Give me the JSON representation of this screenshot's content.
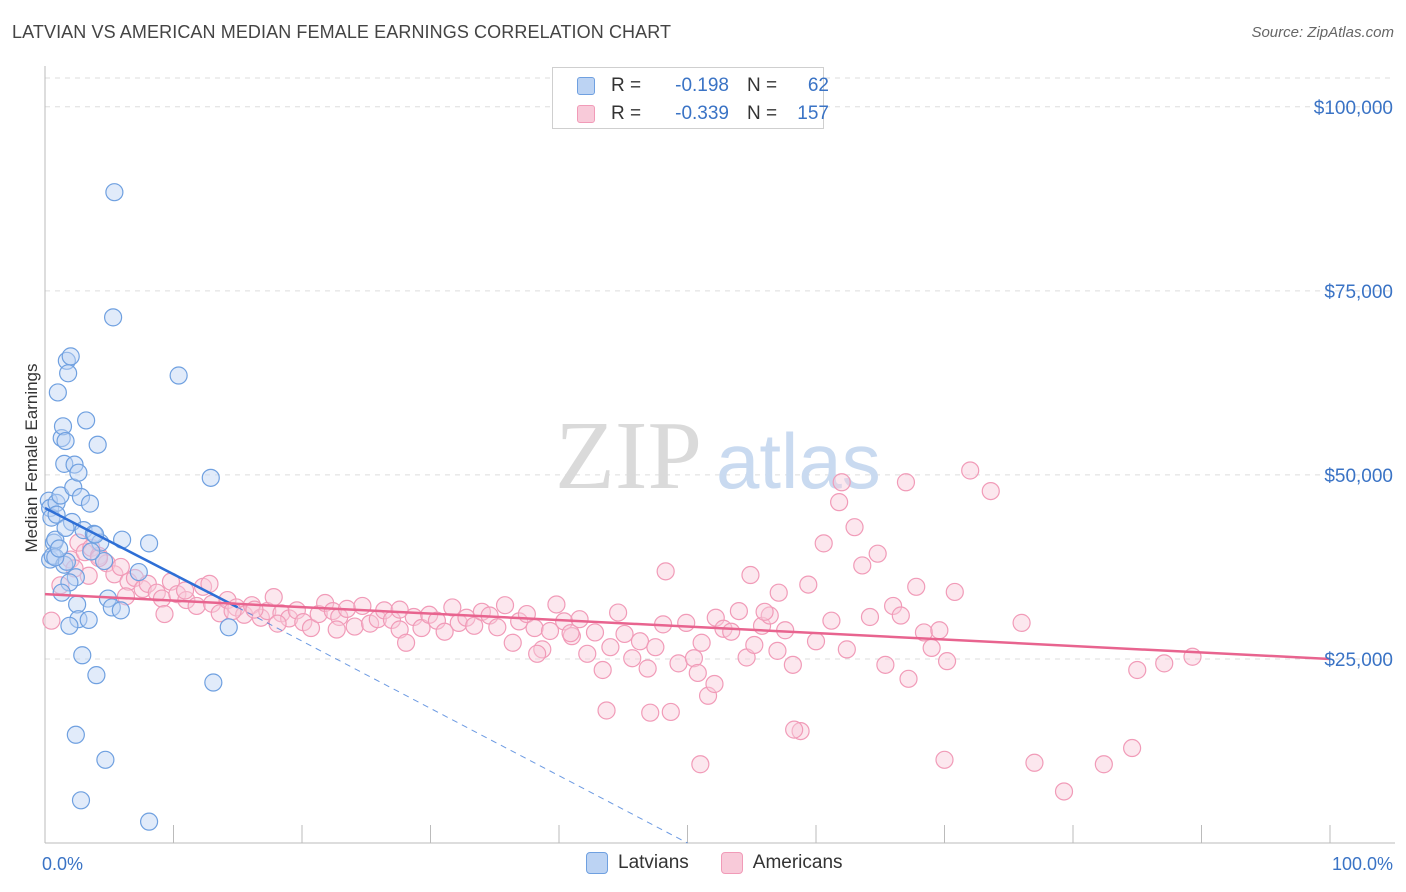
{
  "header": {
    "title": "LATVIAN VS AMERICAN MEDIAN FEMALE EARNINGS CORRELATION CHART",
    "source": "Source: ZipAtlas.com"
  },
  "watermark": {
    "zip": "ZIP",
    "atlas": "atlas"
  },
  "legend_top": [
    {
      "r_label": "R =",
      "r_value": "-0.198",
      "n_label": "N =",
      "n_value": "62",
      "color": "#6fa0e0"
    },
    {
      "r_label": "R =",
      "r_value": "-0.339",
      "n_label": "N =",
      "n_value": "157",
      "color": "#f19bb8"
    }
  ],
  "chart_data": {
    "type": "scatter",
    "title": "LATVIAN VS AMERICAN MEDIAN FEMALE EARNINGS CORRELATION CHART",
    "xlabel": "",
    "ylabel": "Median Female Earnings",
    "xlim": [
      0,
      100
    ],
    "ylim": [
      0,
      105000
    ],
    "x_tick_labels": [
      "0.0%",
      "100.0%"
    ],
    "y_ticks": [
      25000,
      50000,
      75000,
      100000
    ],
    "y_tick_labels": [
      "$25,000",
      "$50,000",
      "$75,000",
      "$100,000"
    ],
    "grid": "horizontal dashed",
    "legend_placement": "top-center and bottom-center",
    "colors": {
      "latvians": "#6fa0e0",
      "americans": "#f19bb8",
      "latvians_line": "#2e6fd6",
      "americans_line": "#e8648f"
    },
    "series": [
      {
        "name": "Latvians",
        "trend": {
          "x": [
            0,
            15
          ],
          "y": [
            45500,
            32000
          ],
          "extended_dashed_to": [
            50,
            0
          ]
        },
        "points": [
          [
            0.3,
            46500
          ],
          [
            0.4,
            45500
          ],
          [
            0.5,
            44200
          ],
          [
            0.4,
            38500
          ],
          [
            0.7,
            40800
          ],
          [
            0.6,
            39000
          ],
          [
            0.8,
            41200
          ],
          [
            0.9,
            46200
          ],
          [
            1.2,
            47200
          ],
          [
            1.0,
            61200
          ],
          [
            1.3,
            55000
          ],
          [
            1.4,
            56600
          ],
          [
            1.5,
            51500
          ],
          [
            1.6,
            54600
          ],
          [
            1.7,
            65500
          ],
          [
            1.8,
            63800
          ],
          [
            2.0,
            66100
          ],
          [
            2.2,
            48300
          ],
          [
            2.3,
            51400
          ],
          [
            2.6,
            50300
          ],
          [
            2.1,
            43600
          ],
          [
            2.4,
            36100
          ],
          [
            1.9,
            35400
          ],
          [
            1.5,
            37800
          ],
          [
            1.3,
            34000
          ],
          [
            1.7,
            38200
          ],
          [
            2.8,
            47000
          ],
          [
            3.2,
            57400
          ],
          [
            3.5,
            46100
          ],
          [
            3.0,
            42500
          ],
          [
            3.8,
            42000
          ],
          [
            4.1,
            54100
          ],
          [
            4.3,
            40800
          ],
          [
            4.6,
            38300
          ],
          [
            4.9,
            33200
          ],
          [
            5.2,
            32000
          ],
          [
            5.3,
            71400
          ],
          [
            5.4,
            88400
          ],
          [
            6.0,
            41200
          ],
          [
            7.3,
            36800
          ],
          [
            8.1,
            40700
          ],
          [
            10.4,
            63500
          ],
          [
            12.9,
            49600
          ],
          [
            13.1,
            21800
          ],
          [
            14.3,
            29300
          ],
          [
            2.5,
            32400
          ],
          [
            2.6,
            30400
          ],
          [
            3.4,
            30300
          ],
          [
            1.9,
            29500
          ],
          [
            2.9,
            25500
          ],
          [
            4.0,
            22800
          ],
          [
            2.4,
            14700
          ],
          [
            4.7,
            11300
          ],
          [
            2.8,
            5800
          ],
          [
            8.1,
            2900
          ],
          [
            0.8,
            38800
          ],
          [
            1.1,
            40000
          ],
          [
            3.6,
            39600
          ],
          [
            0.9,
            44600
          ],
          [
            1.6,
            42800
          ],
          [
            5.9,
            31600
          ],
          [
            3.9,
            41900
          ]
        ]
      },
      {
        "name": "Americans",
        "trend": {
          "x": [
            0,
            100
          ],
          "y": [
            33800,
            25000
          ]
        },
        "points": [
          [
            0.5,
            30200
          ],
          [
            1.2,
            35000
          ],
          [
            2.0,
            38500
          ],
          [
            2.6,
            40800
          ],
          [
            3.1,
            39500
          ],
          [
            3.6,
            40100
          ],
          [
            4.2,
            39000
          ],
          [
            4.8,
            38000
          ],
          [
            5.4,
            36500
          ],
          [
            5.9,
            37500
          ],
          [
            6.5,
            35500
          ],
          [
            7.0,
            36000
          ],
          [
            7.6,
            34500
          ],
          [
            8.0,
            35200
          ],
          [
            8.7,
            34000
          ],
          [
            9.1,
            33200
          ],
          [
            9.8,
            35500
          ],
          [
            10.3,
            33800
          ],
          [
            11.0,
            33000
          ],
          [
            11.8,
            32200
          ],
          [
            12.3,
            34800
          ],
          [
            13.0,
            32500
          ],
          [
            13.6,
            31200
          ],
          [
            14.2,
            33000
          ],
          [
            14.9,
            32000
          ],
          [
            15.5,
            31000
          ],
          [
            16.1,
            32300
          ],
          [
            16.8,
            30600
          ],
          [
            17.3,
            31500
          ],
          [
            17.8,
            33400
          ],
          [
            18.4,
            31200
          ],
          [
            19.0,
            30500
          ],
          [
            19.6,
            31600
          ],
          [
            20.1,
            30000
          ],
          [
            20.7,
            29200
          ],
          [
            21.3,
            31100
          ],
          [
            21.8,
            32600
          ],
          [
            22.4,
            31500
          ],
          [
            22.9,
            30700
          ],
          [
            23.5,
            31800
          ],
          [
            24.1,
            29400
          ],
          [
            24.7,
            32200
          ],
          [
            25.3,
            29800
          ],
          [
            25.9,
            30400
          ],
          [
            26.4,
            31600
          ],
          [
            27.0,
            30300
          ],
          [
            27.6,
            29000
          ],
          [
            28.1,
            27200
          ],
          [
            28.7,
            30700
          ],
          [
            29.3,
            29200
          ],
          [
            29.9,
            31000
          ],
          [
            30.5,
            30200
          ],
          [
            31.1,
            28700
          ],
          [
            31.7,
            32000
          ],
          [
            32.2,
            29900
          ],
          [
            32.8,
            30600
          ],
          [
            33.4,
            29500
          ],
          [
            34.0,
            31400
          ],
          [
            34.6,
            30900
          ],
          [
            35.2,
            29300
          ],
          [
            35.8,
            32300
          ],
          [
            36.4,
            27200
          ],
          [
            36.9,
            30100
          ],
          [
            37.5,
            31100
          ],
          [
            38.1,
            29200
          ],
          [
            38.7,
            26300
          ],
          [
            39.3,
            28800
          ],
          [
            39.8,
            32400
          ],
          [
            40.4,
            30100
          ],
          [
            41.0,
            28100
          ],
          [
            41.6,
            30400
          ],
          [
            42.2,
            25700
          ],
          [
            42.8,
            28600
          ],
          [
            43.4,
            23500
          ],
          [
            44.0,
            26600
          ],
          [
            44.6,
            31300
          ],
          [
            45.1,
            28400
          ],
          [
            45.7,
            25100
          ],
          [
            46.3,
            27400
          ],
          [
            46.9,
            23700
          ],
          [
            47.5,
            26600
          ],
          [
            48.1,
            29700
          ],
          [
            48.7,
            17800
          ],
          [
            49.3,
            24400
          ],
          [
            49.9,
            29900
          ],
          [
            50.5,
            25100
          ],
          [
            51.1,
            27200
          ],
          [
            51.6,
            20000
          ],
          [
            52.2,
            30600
          ],
          [
            52.8,
            29100
          ],
          [
            53.4,
            28700
          ],
          [
            54.0,
            31500
          ],
          [
            54.6,
            25200
          ],
          [
            55.2,
            26900
          ],
          [
            55.8,
            29500
          ],
          [
            56.4,
            30900
          ],
          [
            57.0,
            26100
          ],
          [
            57.6,
            28900
          ],
          [
            58.2,
            24200
          ],
          [
            58.8,
            15200
          ],
          [
            59.4,
            35100
          ],
          [
            60.0,
            27400
          ],
          [
            60.6,
            40700
          ],
          [
            61.2,
            30200
          ],
          [
            61.8,
            46300
          ],
          [
            62.4,
            26300
          ],
          [
            63.0,
            42900
          ],
          [
            63.6,
            37700
          ],
          [
            64.2,
            30700
          ],
          [
            64.8,
            39300
          ],
          [
            65.4,
            24200
          ],
          [
            66.0,
            32200
          ],
          [
            66.6,
            30900
          ],
          [
            67.2,
            22300
          ],
          [
            67.8,
            34800
          ],
          [
            68.4,
            28600
          ],
          [
            69.0,
            26500
          ],
          [
            69.6,
            28900
          ],
          [
            70.2,
            24700
          ],
          [
            70.8,
            34100
          ],
          [
            48.3,
            36900
          ],
          [
            50.8,
            23100
          ],
          [
            52.1,
            21600
          ],
          [
            54.9,
            36400
          ],
          [
            56.0,
            31400
          ],
          [
            57.1,
            34000
          ],
          [
            62.0,
            49000
          ],
          [
            72.0,
            50600
          ],
          [
            73.6,
            47800
          ],
          [
            76.0,
            29900
          ],
          [
            77.0,
            10900
          ],
          [
            79.3,
            7000
          ],
          [
            82.4,
            10700
          ],
          [
            84.6,
            12900
          ],
          [
            85.0,
            23500
          ],
          [
            87.1,
            24400
          ],
          [
            89.3,
            25300
          ],
          [
            70.0,
            11300
          ],
          [
            67.0,
            49000
          ],
          [
            47.1,
            17700
          ],
          [
            40.9,
            28500
          ],
          [
            43.7,
            18000
          ],
          [
            51.0,
            10700
          ],
          [
            58.3,
            15400
          ],
          [
            38.3,
            25700
          ],
          [
            27.6,
            31700
          ],
          [
            22.7,
            29000
          ],
          [
            18.1,
            29800
          ],
          [
            14.6,
            31500
          ],
          [
            10.9,
            34300
          ],
          [
            6.3,
            33500
          ],
          [
            4.2,
            38700
          ],
          [
            3.4,
            36300
          ],
          [
            2.3,
            37300
          ],
          [
            9.3,
            31100
          ],
          [
            12.8,
            35200
          ],
          [
            16.3,
            31700
          ]
        ]
      }
    ]
  },
  "bottom_legend": [
    {
      "label": "Latvians",
      "color": "#6fa0e0"
    },
    {
      "label": "Americans",
      "color": "#f19bb8"
    }
  ]
}
